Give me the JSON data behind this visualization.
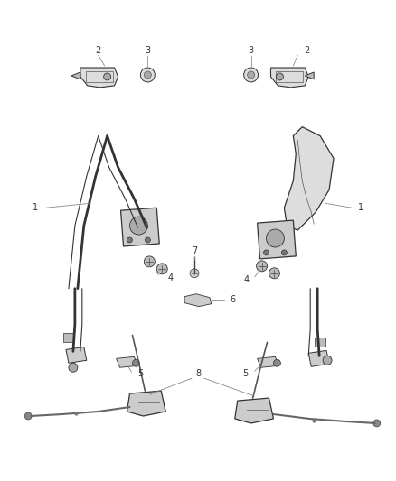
{
  "bg_color": "#ffffff",
  "fig_width": 4.38,
  "fig_height": 5.33,
  "dpi": 100,
  "font_size": 7,
  "line_color": "#555555",
  "label_color": "#333333",
  "part_color": "#cccccc",
  "dark_color": "#444444"
}
